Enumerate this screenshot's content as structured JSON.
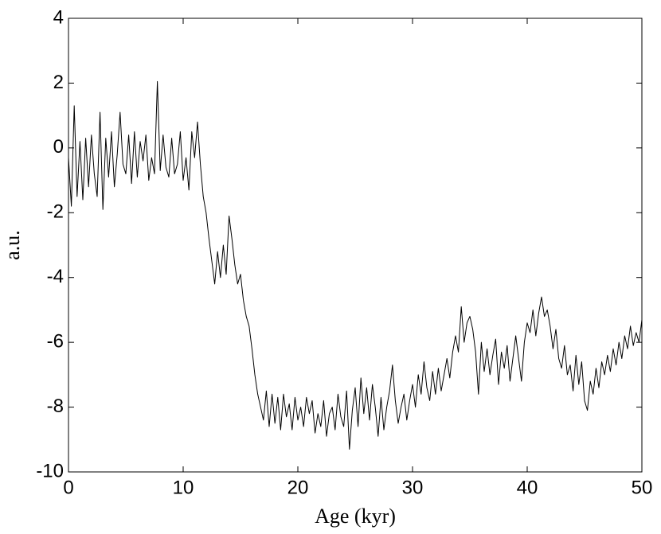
{
  "chart_data": {
    "type": "line",
    "xlabel": "Age (kyr)",
    "ylabel": "a.u.",
    "color": "#000000",
    "xlim": [
      0,
      50
    ],
    "ylim": [
      -10,
      4
    ],
    "xticks": [
      0,
      10,
      20,
      30,
      40,
      50
    ],
    "yticks": [
      -10,
      -8,
      -6,
      -4,
      -2,
      0,
      2,
      4
    ],
    "x": [
      0,
      0.25,
      0.5,
      0.75,
      1,
      1.25,
      1.5,
      1.75,
      2,
      2.25,
      2.5,
      2.75,
      3,
      3.25,
      3.5,
      3.75,
      4,
      4.25,
      4.5,
      4.75,
      5,
      5.25,
      5.5,
      5.75,
      6,
      6.25,
      6.5,
      6.75,
      7,
      7.25,
      7.5,
      7.75,
      8,
      8.25,
      8.5,
      8.75,
      9,
      9.25,
      9.5,
      9.75,
      10,
      10.25,
      10.5,
      10.75,
      11,
      11.25,
      11.5,
      11.75,
      12,
      12.25,
      12.5,
      12.75,
      13,
      13.25,
      13.5,
      13.75,
      14,
      14.25,
      14.5,
      14.75,
      15,
      15.25,
      15.5,
      15.75,
      16,
      16.25,
      16.5,
      16.75,
      17,
      17.25,
      17.5,
      17.75,
      18,
      18.25,
      18.5,
      18.75,
      19,
      19.25,
      19.5,
      19.75,
      20,
      20.25,
      20.5,
      20.75,
      21,
      21.25,
      21.5,
      21.75,
      22,
      22.25,
      22.5,
      22.75,
      23,
      23.25,
      23.5,
      23.75,
      24,
      24.25,
      24.5,
      24.75,
      25,
      25.25,
      25.5,
      25.75,
      26,
      26.25,
      26.5,
      26.75,
      27,
      27.25,
      27.5,
      27.75,
      28,
      28.25,
      28.5,
      28.75,
      29,
      29.25,
      29.5,
      29.75,
      30,
      30.25,
      30.5,
      30.75,
      31,
      31.25,
      31.5,
      31.75,
      32,
      32.25,
      32.5,
      32.75,
      33,
      33.25,
      33.5,
      33.75,
      34,
      34.25,
      34.5,
      34.75,
      35,
      35.25,
      35.5,
      35.75,
      36,
      36.25,
      36.5,
      36.75,
      37,
      37.25,
      37.5,
      37.75,
      38,
      38.25,
      38.5,
      38.75,
      39,
      39.25,
      39.5,
      39.75,
      40,
      40.25,
      40.5,
      40.75,
      41,
      41.25,
      41.5,
      41.75,
      42,
      42.25,
      42.5,
      42.75,
      43,
      43.25,
      43.5,
      43.75,
      44,
      44.25,
      44.5,
      44.75,
      45,
      45.25,
      45.5,
      45.75,
      46,
      46.25,
      46.5,
      46.75,
      47,
      47.25,
      47.5,
      47.75,
      48,
      48.25,
      48.5,
      48.75,
      49,
      49.25,
      49.5,
      49.75,
      50
    ],
    "values": [
      -0.3,
      -1.8,
      1.3,
      -1.5,
      0.2,
      -1.6,
      0.3,
      -1.2,
      0.4,
      -0.8,
      -1.5,
      1.1,
      -1.9,
      0.3,
      -0.9,
      0.5,
      -1.2,
      -0.2,
      1.1,
      -0.5,
      -0.8,
      0.4,
      -1.1,
      0.5,
      -0.9,
      0.2,
      -0.4,
      0.4,
      -1.0,
      -0.3,
      -0.8,
      2.05,
      -0.7,
      0.4,
      -0.6,
      -0.9,
      0.3,
      -0.8,
      -0.5,
      0.5,
      -1.0,
      -0.3,
      -1.3,
      0.5,
      -0.3,
      0.8,
      -0.5,
      -1.5,
      -2.0,
      -2.8,
      -3.5,
      -4.2,
      -3.2,
      -4.0,
      -3.0,
      -3.9,
      -2.1,
      -2.8,
      -3.6,
      -4.2,
      -3.9,
      -4.7,
      -5.2,
      -5.5,
      -6.2,
      -7.0,
      -7.6,
      -8.0,
      -8.4,
      -7.5,
      -8.6,
      -7.6,
      -8.5,
      -7.7,
      -8.7,
      -7.6,
      -8.3,
      -7.9,
      -8.7,
      -7.7,
      -8.4,
      -8.0,
      -8.6,
      -7.7,
      -8.2,
      -7.8,
      -8.8,
      -8.2,
      -8.6,
      -7.8,
      -8.9,
      -8.2,
      -8.0,
      -8.7,
      -7.6,
      -8.3,
      -8.6,
      -7.5,
      -9.3,
      -8.1,
      -7.4,
      -8.6,
      -7.1,
      -8.2,
      -7.4,
      -8.4,
      -7.3,
      -8.0,
      -8.9,
      -7.7,
      -8.7,
      -8.0,
      -7.5,
      -6.7,
      -7.8,
      -8.5,
      -8.0,
      -7.6,
      -8.4,
      -7.8,
      -7.3,
      -8.0,
      -7.0,
      -7.6,
      -6.6,
      -7.4,
      -7.8,
      -6.9,
      -7.6,
      -6.8,
      -7.5,
      -7.0,
      -6.5,
      -7.1,
      -6.3,
      -5.8,
      -6.3,
      -4.9,
      -6.0,
      -5.4,
      -5.2,
      -5.6,
      -6.3,
      -7.6,
      -6.0,
      -6.9,
      -6.2,
      -7.0,
      -6.4,
      -5.9,
      -7.3,
      -6.3,
      -6.8,
      -6.1,
      -7.2,
      -6.5,
      -5.8,
      -6.5,
      -7.2,
      -6.0,
      -5.4,
      -5.7,
      -5.0,
      -5.8,
      -5.1,
      -4.6,
      -5.2,
      -5.0,
      -5.5,
      -6.2,
      -5.6,
      -6.5,
      -6.8,
      -6.1,
      -7.0,
      -6.7,
      -7.5,
      -6.4,
      -7.3,
      -6.6,
      -7.8,
      -8.1,
      -7.2,
      -7.6,
      -6.8,
      -7.4,
      -6.6,
      -7.0,
      -6.4,
      -6.9,
      -6.2,
      -6.7,
      -6.0,
      -6.5,
      -5.8,
      -6.2,
      -5.5,
      -6.1,
      -5.7,
      -6.0,
      -5.3
    ]
  }
}
